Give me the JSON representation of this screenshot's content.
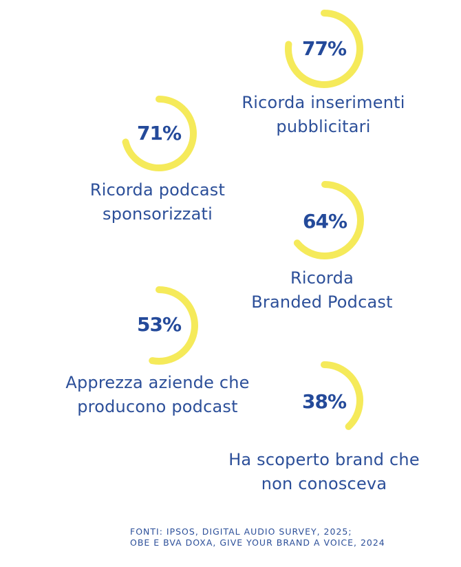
{
  "chart_data": {
    "type": "radial",
    "accent_color": "#f5ea5a",
    "text_color": "#244a9a",
    "items": [
      {
        "value": 77,
        "value_label": "77%",
        "label_lines": [
          "Ricorda inserimenti",
          "pubblicitari"
        ]
      },
      {
        "value": 71,
        "value_label": "71%",
        "label_lines": [
          "Ricorda podcast",
          "sponsorizzati"
        ]
      },
      {
        "value": 64,
        "value_label": "64%",
        "label_lines": [
          "Ricorda",
          "Branded Podcast"
        ]
      },
      {
        "value": 53,
        "value_label": "53%",
        "label_lines": [
          "Apprezza aziende che",
          "producono podcast"
        ]
      },
      {
        "value": 38,
        "value_label": "38%",
        "label_lines": [
          "Ha scoperto brand che",
          "non conosceva"
        ]
      }
    ]
  },
  "sources": {
    "line1": "FONTI: IPSOS, DIGITAL AUDIO SURVEY, 2025;",
    "line2": "OBE E BVA DOXA, GIVE YOUR BRAND A VOICE, 2024"
  }
}
